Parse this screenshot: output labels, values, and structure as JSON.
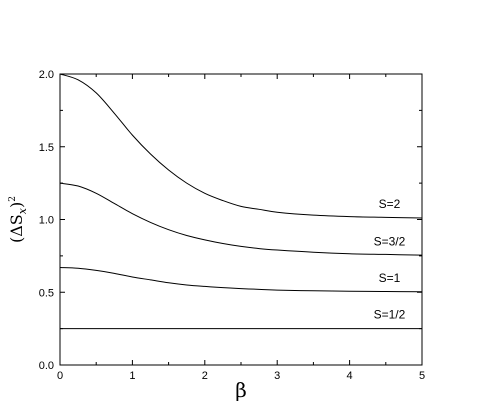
{
  "chart_data": {
    "type": "line",
    "title": "",
    "xlabel": "β",
    "ylabel": "(ΔS",
    "ylabel_sub": "x",
    "ylabel_close": ")",
    "ylabel_sup": "2",
    "xlim": [
      0,
      5
    ],
    "ylim": [
      0.0,
      2.0
    ],
    "x_ticks": [
      0,
      1,
      2,
      3,
      4,
      5
    ],
    "x_tick_labels": [
      "0",
      "1",
      "2",
      "3",
      "4",
      "5"
    ],
    "y_ticks": [
      0.0,
      0.5,
      1.0,
      1.5,
      2.0
    ],
    "y_tick_labels": [
      "0.0",
      "0.5",
      "1.0",
      "1.5",
      "2.0"
    ],
    "grid": false,
    "legend": "none",
    "line_color": "#000000",
    "series": [
      {
        "name": "S=2",
        "label_at": [
          4.55,
          1.08
        ],
        "x": [
          0,
          0.25,
          0.5,
          0.75,
          1.0,
          1.25,
          1.5,
          1.75,
          2.0,
          2.25,
          2.5,
          2.75,
          3.0,
          3.5,
          4.0,
          4.5,
          5.0
        ],
        "y": [
          2.0,
          1.96,
          1.87,
          1.73,
          1.58,
          1.45,
          1.34,
          1.25,
          1.18,
          1.13,
          1.09,
          1.07,
          1.05,
          1.03,
          1.02,
          1.015,
          1.01
        ]
      },
      {
        "name": "S=3/2",
        "label_at": [
          4.55,
          0.82
        ],
        "x": [
          0,
          0.25,
          0.5,
          0.75,
          1.0,
          1.25,
          1.5,
          1.75,
          2.0,
          2.25,
          2.5,
          2.75,
          3.0,
          3.5,
          4.0,
          4.5,
          5.0
        ],
        "y": [
          1.25,
          1.23,
          1.18,
          1.11,
          1.04,
          0.98,
          0.93,
          0.89,
          0.86,
          0.835,
          0.815,
          0.8,
          0.79,
          0.775,
          0.765,
          0.76,
          0.755
        ]
      },
      {
        "name": "S=1",
        "label_at": [
          4.55,
          0.57
        ],
        "x": [
          0,
          0.25,
          0.5,
          0.75,
          1.0,
          1.25,
          1.5,
          1.75,
          2.0,
          2.25,
          2.5,
          2.75,
          3.0,
          3.5,
          4.0,
          4.5,
          5.0
        ],
        "y": [
          0.67,
          0.665,
          0.65,
          0.63,
          0.605,
          0.585,
          0.565,
          0.55,
          0.54,
          0.532,
          0.525,
          0.52,
          0.515,
          0.51,
          0.507,
          0.505,
          0.503
        ]
      },
      {
        "name": "S=1/2",
        "label_at": [
          4.55,
          0.32
        ],
        "x": [
          0,
          5.0
        ],
        "y": [
          0.25,
          0.25
        ]
      }
    ]
  }
}
